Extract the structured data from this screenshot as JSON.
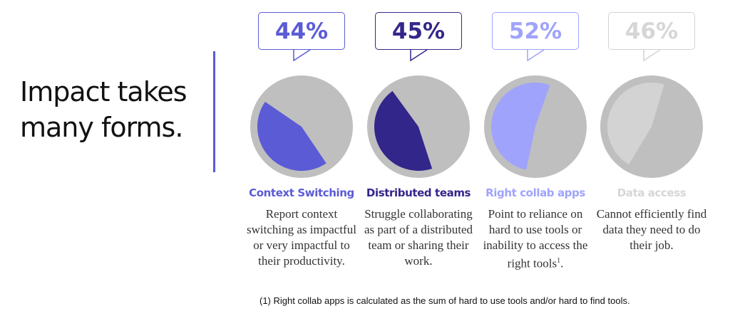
{
  "title": {
    "line1": "Impact takes",
    "line2": "many forms."
  },
  "chart_data": {
    "type": "pie",
    "background_color": "#bfbfbf",
    "items": [
      {
        "value": 44,
        "value_label": "44%",
        "label": "Context Switching",
        "description": "Report context switching as impactful or very impactful to their productivity.",
        "color": "#5b5bd6",
        "text_color": "#5b5bd6"
      },
      {
        "value": 45,
        "value_label": "45%",
        "label": "Distributed teams",
        "description": "Struggle collaborating as part of a distributed team or sharing their work.",
        "color": "#33268a",
        "text_color": "#33268a"
      },
      {
        "value": 52,
        "value_label": "52%",
        "label": "Right collab apps",
        "description": "Point to reliance on hard to use tools or inability to access the right tools",
        "description_sup": "1",
        "description_end": ".",
        "color": "#9fa3fb",
        "text_color": "#9fa3fb"
      },
      {
        "value": 46,
        "value_label": "46%",
        "label": "Data access",
        "description": "Cannot efficiently find data they need to do their job.",
        "color": "#d3d3d3",
        "text_color": "#d6d6d6"
      }
    ]
  },
  "footnote": "(1) Right collab apps is calculated as the sum of hard to use tools and/or hard to find tools."
}
